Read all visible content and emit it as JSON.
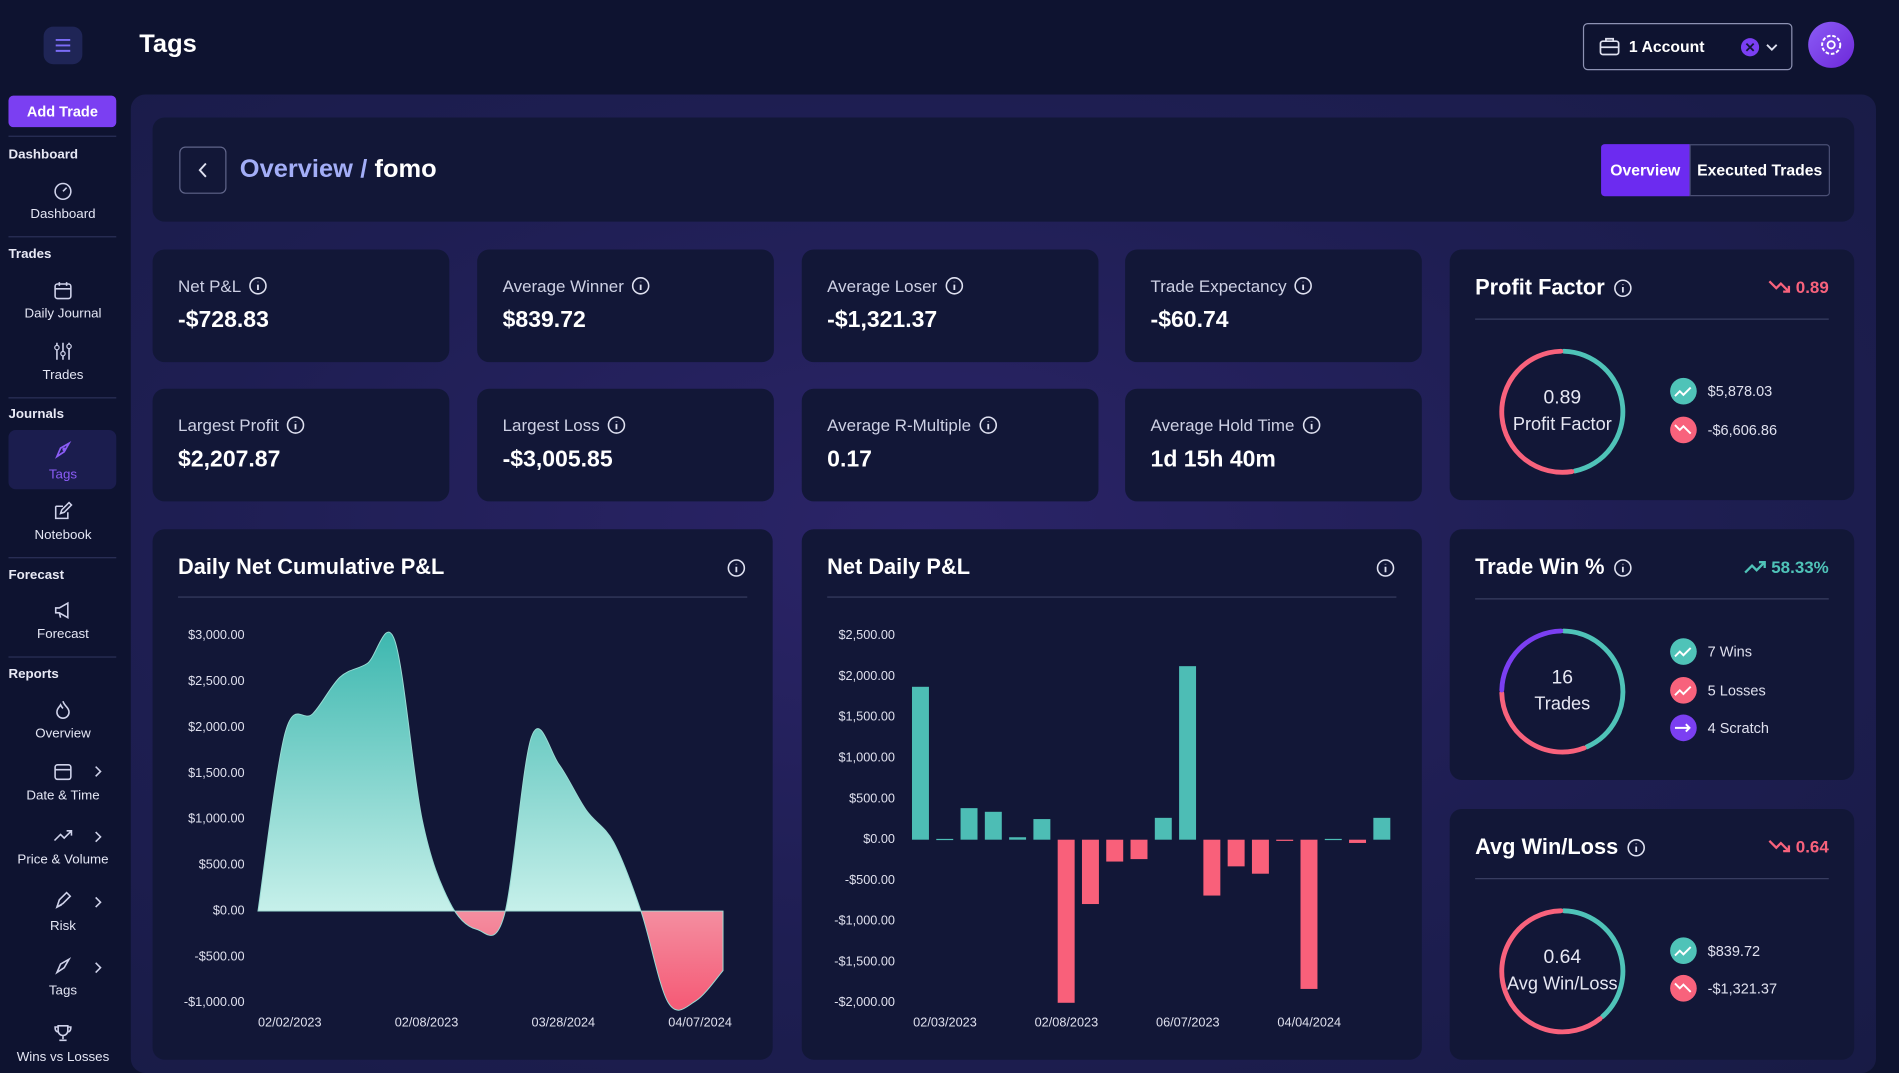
{
  "header": {
    "title": "Tags",
    "account": "1 Account"
  },
  "sidebar": {
    "add_trade": "Add Trade",
    "sections": [
      {
        "title": "Dashboard",
        "items": [
          "Dashboard"
        ]
      },
      {
        "title": "Trades",
        "items": [
          "Daily Journal",
          "Trades"
        ]
      },
      {
        "title": "Journals",
        "items": [
          "Tags",
          "Notebook"
        ]
      },
      {
        "title": "Forecast",
        "items": [
          "Forecast"
        ]
      },
      {
        "title": "Reports",
        "items": [
          "Overview",
          "Date & Time",
          "Price & Volume",
          "Risk",
          "Tags",
          "Wins vs Losses"
        ]
      }
    ]
  },
  "breadcrumb": {
    "parent": "Overview",
    "separator": "/",
    "current": "fomo"
  },
  "tabs": [
    "Overview",
    "Executed Trades"
  ],
  "stats": [
    {
      "label": "Net P&L",
      "value": "-$728.83"
    },
    {
      "label": "Average Winner",
      "value": "$839.72"
    },
    {
      "label": "Average Loser",
      "value": "-$1,321.37"
    },
    {
      "label": "Trade Expectancy",
      "value": "-$60.74"
    },
    {
      "label": "Largest Profit",
      "value": "$2,207.87"
    },
    {
      "label": "Largest Loss",
      "value": "-$3,005.85"
    },
    {
      "label": "Average R-Multiple",
      "value": "0.17"
    },
    {
      "label": "Average Hold Time",
      "value": "1d 15h 40m"
    }
  ],
  "profit_factor": {
    "title": "Profit Factor",
    "change": 0.89,
    "center_value": 0.89,
    "center_label": "Profit Factor",
    "items": [
      {
        "value": 5878.03,
        "label": "$5,878.03",
        "color": "#4fc3b8"
      },
      {
        "value": -6606.86,
        "label": "-$6,606.86",
        "color": "#f8627c"
      }
    ]
  },
  "trade_win": {
    "title": "Trade Win %",
    "change": "58.33%",
    "center_value": 16,
    "center_label": "Trades",
    "items": [
      {
        "value": 7,
        "label": "7 Wins",
        "color": "#4fc3b8"
      },
      {
        "value": 5,
        "label": "5 Losses",
        "color": "#f8627c"
      },
      {
        "value": 4,
        "label": "4 Scratch",
        "color": "#7b3ff2"
      }
    ]
  },
  "avg_win_loss": {
    "title": "Avg Win/Loss",
    "change": 0.64,
    "center_value": 0.64,
    "center_label": "Avg Win/Loss",
    "items": [
      {
        "value": 839.72,
        "label": "$839.72",
        "color": "#4fc3b8"
      },
      {
        "value": -1321.37,
        "label": "-$1,321.37",
        "color": "#f8627c"
      }
    ]
  },
  "chart_data": [
    {
      "type": "area",
      "title": "Daily Net Cumulative P&L",
      "categories": [
        "02/02/2023",
        null,
        null,
        null,
        null,
        "02/08/2023",
        null,
        null,
        null,
        null,
        "03/28/2024",
        null,
        null,
        null,
        null,
        "04/07/2024",
        null,
        null
      ],
      "values": [
        0,
        1950,
        2150,
        2550,
        2700,
        2950,
        1000,
        100,
        -200,
        -50,
        1900,
        1600,
        1100,
        750,
        0,
        -1000,
        -980,
        -650
      ],
      "color": "#3fb8b0",
      "negative_color": "#f55d78",
      "ylim": [
        -1000,
        3000
      ],
      "yticks": [
        {
          "value": -1000,
          "label": "-$1,000.00"
        },
        {
          "value": -500,
          "label": "-$500.00"
        },
        {
          "value": 0,
          "label": "$0.00"
        },
        {
          "value": 500,
          "label": "$500.00"
        },
        {
          "value": 1000,
          "label": "$1,000.00"
        },
        {
          "value": 1500,
          "label": "$1,500.00"
        },
        {
          "value": 2000,
          "label": "$2,000.00"
        },
        {
          "value": 2500,
          "label": "$2,500.00"
        },
        {
          "value": 3000,
          "label": "$3,000.00"
        }
      ]
    },
    {
      "type": "bar",
      "title": "Net Daily P&L",
      "categories": [
        "02/03/2023",
        null,
        null,
        null,
        null,
        "02/08/2023",
        null,
        null,
        null,
        null,
        "06/07/2023",
        null,
        null,
        null,
        null,
        "04/04/2024",
        null,
        null,
        null,
        null
      ],
      "values": [
        1875,
        10,
        387,
        342,
        30,
        253,
        -2000,
        -789,
        -268,
        -238,
        268,
        2128,
        -685,
        -327,
        -417,
        -5,
        -1830,
        10,
        -40,
        268
      ],
      "color": "#4dbdb5",
      "negative_color": "#f9607a",
      "ylim": [
        -2000,
        2500
      ],
      "yticks": [
        {
          "value": -2000,
          "label": "-$2,000.00"
        },
        {
          "value": -1500,
          "label": "-$1,500.00"
        },
        {
          "value": -1000,
          "label": "-$1,000.00"
        },
        {
          "value": -500,
          "label": "-$500.00"
        },
        {
          "value": 0,
          "label": "$0.00"
        },
        {
          "value": 500,
          "label": "$500.00"
        },
        {
          "value": 1000,
          "label": "$1,000.00"
        },
        {
          "value": 1500,
          "label": "$1,500.00"
        },
        {
          "value": 2000,
          "label": "$2,000.00"
        },
        {
          "value": 2500,
          "label": "$2,500.00"
        }
      ]
    }
  ]
}
